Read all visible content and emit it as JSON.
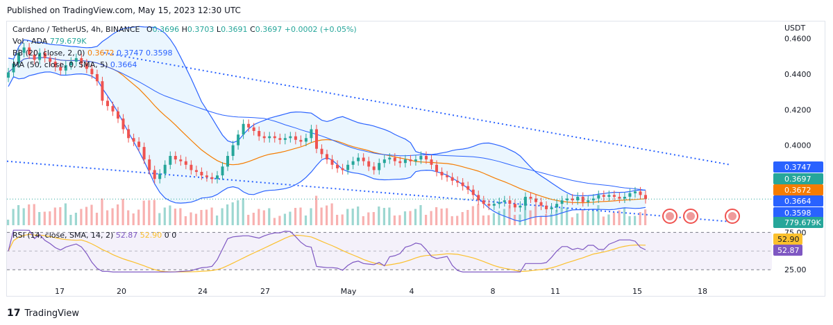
{
  "header": {
    "published": "Published on TradingView.com, May 15, 2023 12:30 UTC"
  },
  "legend": {
    "main_symbol": "Cardano / TetherUS, 4h, BINANCE",
    "open_label": "O",
    "open": "0.3696",
    "high_label": "H",
    "high": "0.3703",
    "low_label": "L",
    "low": "0.3691",
    "close_label": "C",
    "close": "0.3697",
    "change": "+0.0002 (+0.05%)",
    "vol_label": "Vol · ADA",
    "vol_value": "779.679K",
    "bb_label": "BB (20, close, 2, 0)",
    "bb_basis": "0.3672",
    "bb_upper": "0.3747",
    "bb_lower": "0.3598",
    "ma_label": "MA (50, close, 0, SMA, 5)",
    "ma_value": "0.3664",
    "rsi_label": "RSI (14, close, SMA, 14, 2)",
    "rsi_value": "52.87",
    "rsi_ma_value": "52.90",
    "rsi_extra1": "0",
    "rsi_extra2": "0"
  },
  "price_axis": {
    "currency": "USDT",
    "ticks": [
      "0.4600",
      "0.4400",
      "0.4200",
      "0.4000"
    ]
  },
  "price_tags": [
    {
      "label": "0.3747",
      "color": "#2962ff"
    },
    {
      "label": "0.3697",
      "color": "#26a69a"
    },
    {
      "label": "0.3672",
      "color": "#f57c00"
    },
    {
      "label": "0.3664",
      "color": "#2962ff"
    },
    {
      "label": "0.3598",
      "color": "#2962ff"
    },
    {
      "label": "779.679K",
      "color": "#26a69a"
    }
  ],
  "rsi_axis": {
    "ticks": [
      "75.00",
      "25.00"
    ],
    "tags": [
      {
        "label": "52.90",
        "color": "#fbc02d"
      },
      {
        "label": "52.87",
        "color": "#7e57c2"
      }
    ]
  },
  "time_axis": [
    "17",
    "20",
    "24",
    "27",
    "May",
    "4",
    "8",
    "11",
    "15",
    "18"
  ],
  "footer": {
    "brand": "TradingView",
    "logo": "17"
  },
  "colors": {
    "up": "#26a69a",
    "down": "#ef5350",
    "bb": "#2962ff",
    "bb_fill": "#e3f2fd",
    "basis": "#f57c00",
    "rsi": "#7e57c2",
    "rsi_ma": "#fbc02d",
    "rsi_band": "#ede7f6",
    "trendline": "#2962ff"
  },
  "chart_data": {
    "type": "candlestick",
    "symbol": "Cardano / TetherUS",
    "interval": "4h",
    "exchange": "BINANCE",
    "ylim": [
      0.355,
      0.47
    ],
    "yticks": [
      0.46,
      0.44,
      0.42,
      0.4
    ],
    "x_ticks": [
      "17",
      "20",
      "24",
      "27",
      "May",
      "4",
      "8",
      "11",
      "15",
      "18"
    ],
    "candles_close": [
      0.441,
      0.446,
      0.452,
      0.455,
      0.451,
      0.448,
      0.452,
      0.449,
      0.447,
      0.444,
      0.442,
      0.445,
      0.447,
      0.449,
      0.446,
      0.443,
      0.44,
      0.436,
      0.425,
      0.422,
      0.419,
      0.415,
      0.409,
      0.404,
      0.402,
      0.399,
      0.392,
      0.386,
      0.381,
      0.384,
      0.389,
      0.394,
      0.392,
      0.391,
      0.389,
      0.386,
      0.385,
      0.383,
      0.382,
      0.381,
      0.383,
      0.388,
      0.394,
      0.4,
      0.406,
      0.412,
      0.41,
      0.408,
      0.405,
      0.404,
      0.405,
      0.404,
      0.403,
      0.404,
      0.405,
      0.403,
      0.402,
      0.404,
      0.409,
      0.398,
      0.395,
      0.392,
      0.389,
      0.387,
      0.386,
      0.389,
      0.391,
      0.393,
      0.391,
      0.388,
      0.386,
      0.39,
      0.392,
      0.393,
      0.391,
      0.39,
      0.392,
      0.391,
      0.392,
      0.394,
      0.392,
      0.389,
      0.385,
      0.383,
      0.382,
      0.38,
      0.379,
      0.377,
      0.375,
      0.372,
      0.369,
      0.367,
      0.366,
      0.367,
      0.368,
      0.369,
      0.367,
      0.365,
      0.366,
      0.371,
      0.37,
      0.368,
      0.366,
      0.364,
      0.365,
      0.367,
      0.369,
      0.37,
      0.369,
      0.371,
      0.368,
      0.369,
      0.37,
      0.372,
      0.371,
      0.372,
      0.371,
      0.37,
      0.371,
      0.373,
      0.374,
      0.372,
      0.3697
    ],
    "volume_spikes": "higher volume around Apr 19-20, Apr 26-27 and May 9-12",
    "bb": {
      "upper": 0.3747,
      "basis": 0.3672,
      "lower": 0.3598
    },
    "ma50": 0.3664,
    "rsi": {
      "value": 52.87,
      "ma": 52.9,
      "levels": [
        75,
        25
      ]
    },
    "trendlines": "two descending dotted blue trendlines forming a falling wedge"
  }
}
